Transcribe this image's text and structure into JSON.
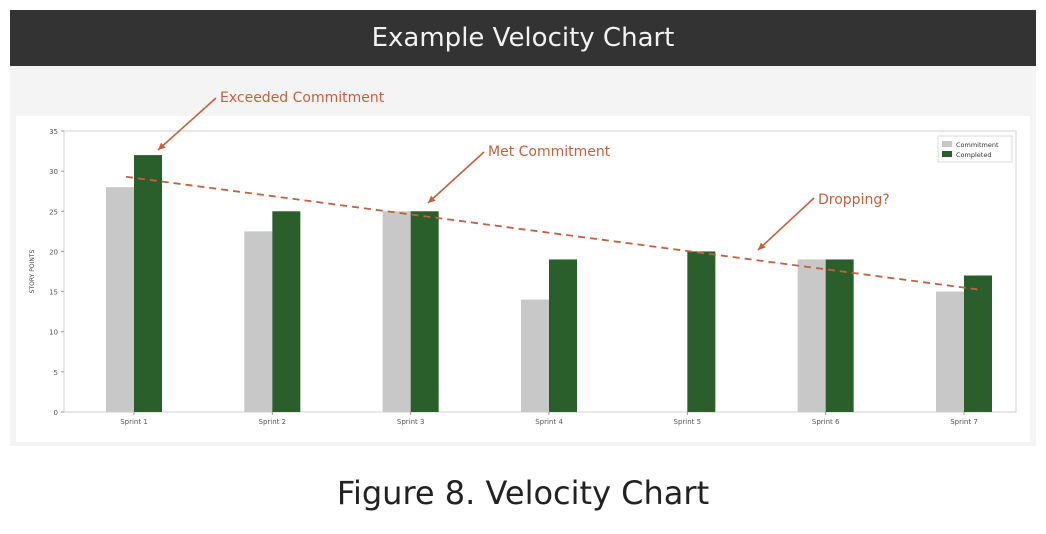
{
  "title": "Example Velocity Chart",
  "caption": "Figure 8. Velocity Chart",
  "colors": {
    "commitment": "#c8c8c8",
    "completed": "#2a5e2a",
    "annotation": "#c65f3e",
    "title_bar": "#333333"
  },
  "chart_data": {
    "type": "bar",
    "title": "Example Velocity Chart",
    "xlabel": "",
    "ylabel": "STORY POINTS",
    "ylim": [
      0,
      35
    ],
    "yticks": [
      "0",
      "5",
      "10",
      "15",
      "20",
      "25",
      "30",
      "35"
    ],
    "categories": [
      "Sprint 1",
      "Sprint 2",
      "Sprint 3",
      "Sprint 4",
      "Sprint 5",
      "Sprint 6",
      "Sprint 7"
    ],
    "series": [
      {
        "name": "Commitment",
        "values": [
          28,
          22.5,
          25,
          14,
          0,
          19,
          15
        ]
      },
      {
        "name": "Completed",
        "values": [
          32,
          25,
          25,
          19,
          20,
          19,
          17
        ]
      }
    ],
    "legend": {
      "position": "top-right",
      "entries": [
        "Commitment",
        "Completed"
      ]
    },
    "trendline": {
      "style": "dashed",
      "start": 29.3,
      "end": 15.2
    },
    "annotations": [
      {
        "text": "Exceeded Commitment",
        "category": "Sprint 1"
      },
      {
        "text": "Met Commitment",
        "category": "Sprint 3"
      },
      {
        "text": "Dropping?",
        "category": "Sprint 5"
      }
    ],
    "grid": false
  }
}
